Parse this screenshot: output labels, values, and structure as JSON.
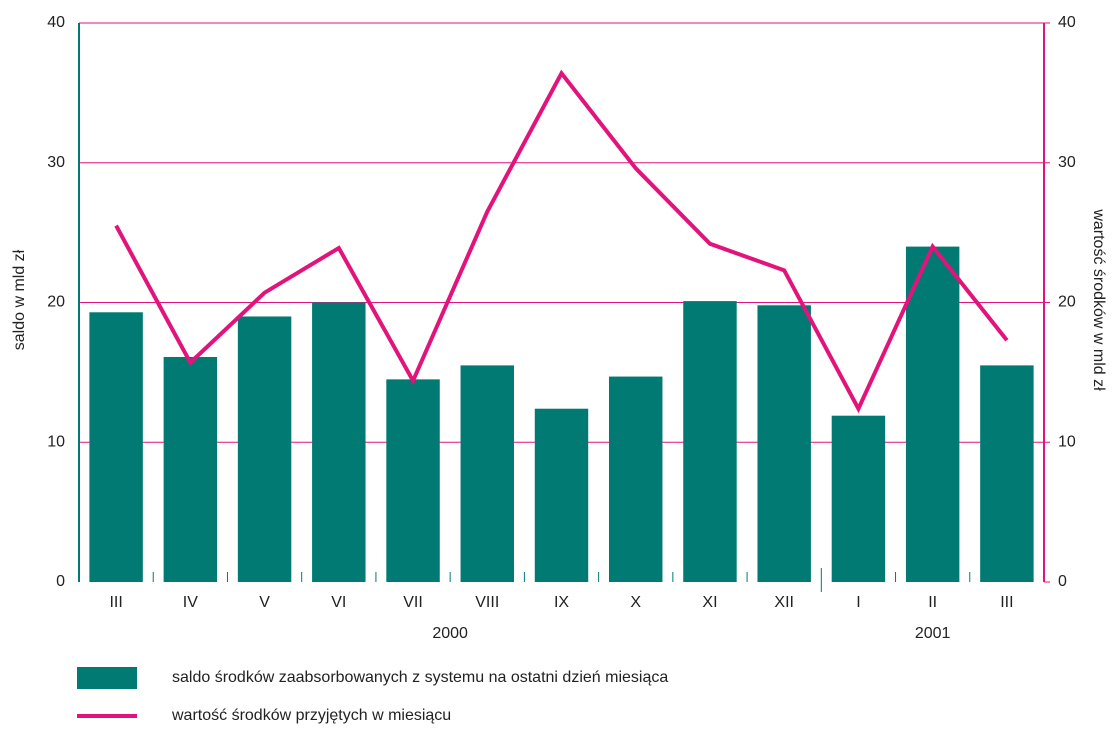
{
  "chart_data": {
    "type": "bar_line",
    "categories": [
      "III",
      "IV",
      "V",
      "VI",
      "VII",
      "VIII",
      "IX",
      "X",
      "XI",
      "XII",
      "I",
      "II",
      "III"
    ],
    "x_groups": [
      {
        "label": "2000",
        "span": 10
      },
      {
        "label": "2001",
        "span": 3
      }
    ],
    "ylabel": "saldo w mld zł",
    "y2label": "wartość środków w mld zł",
    "ylim": [
      0,
      40
    ],
    "yticks": [
      0,
      10,
      20,
      30,
      40
    ],
    "y2lim": [
      0,
      40
    ],
    "y2ticks": [
      0,
      10,
      20,
      30,
      40
    ],
    "grid": true,
    "series": [
      {
        "name": "saldo środków zaabsorbowanych z systemu na ostatni dzień miesiąca",
        "type": "bar",
        "color": "#007a73",
        "values": [
          19.3,
          16.1,
          19.0,
          20.0,
          14.5,
          15.5,
          12.4,
          14.7,
          20.1,
          19.8,
          11.9,
          24.0,
          15.5
        ]
      },
      {
        "name": "wartość środków przyjętych w miesiącu",
        "type": "line",
        "axis": "y2",
        "color": "#e2137a",
        "values": [
          25.5,
          15.7,
          20.7,
          23.9,
          14.4,
          26.5,
          36.4,
          29.6,
          24.2,
          22.3,
          12.4,
          24.0,
          17.3
        ]
      }
    ]
  }
}
